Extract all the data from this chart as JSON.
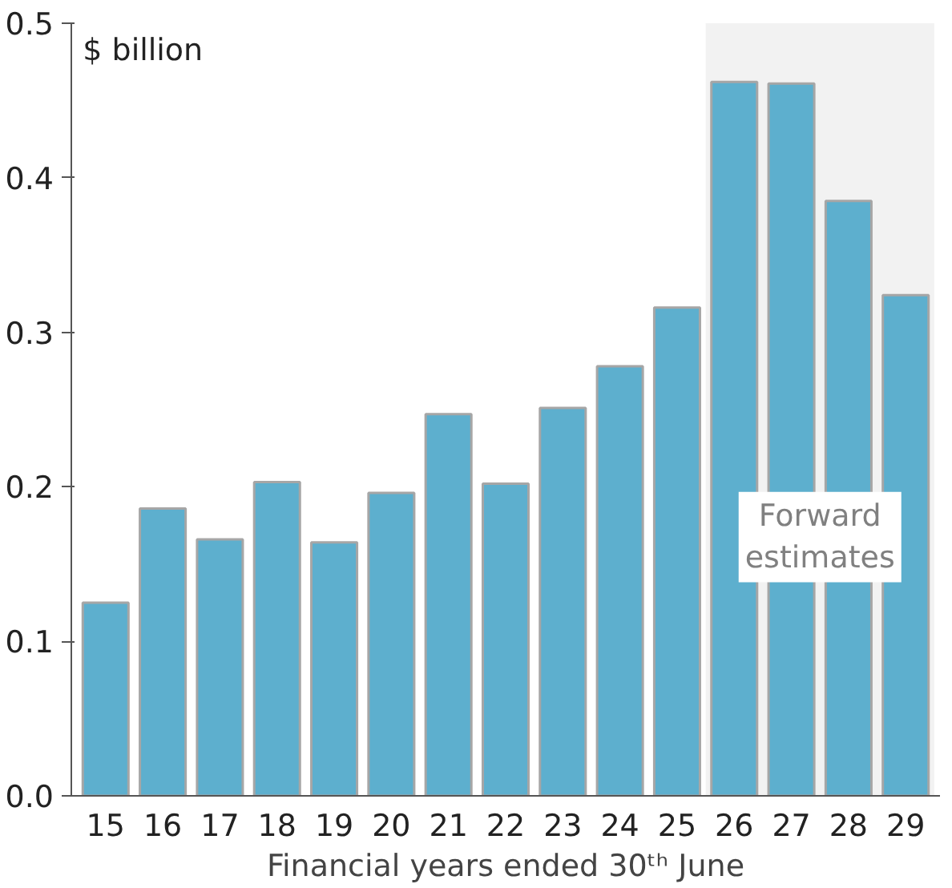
{
  "chart_data": {
    "type": "bar",
    "ylabel": "$ billion",
    "xlabel": "Financial years ended 30ᵗʰ June",
    "categories": [
      "15",
      "16",
      "17",
      "18",
      "19",
      "20",
      "21",
      "22",
      "23",
      "24",
      "25",
      "26",
      "27",
      "28",
      "29"
    ],
    "values": [
      0.125,
      0.186,
      0.166,
      0.203,
      0.164,
      0.196,
      0.247,
      0.202,
      0.251,
      0.278,
      0.316,
      0.462,
      0.461,
      0.385,
      0.324
    ],
    "color": "#5dafce",
    "ylim": [
      0,
      0.5
    ],
    "yticks": [
      {
        "value": 0,
        "label": "0.0"
      },
      0.1,
      0.2,
      0.3,
      0.4,
      0.5
    ],
    "grid": false,
    "bands": [
      {
        "axis": "x",
        "from": "26",
        "to": "29",
        "label": "Forward\nestimates",
        "color": "#f2f2f2"
      }
    ]
  }
}
